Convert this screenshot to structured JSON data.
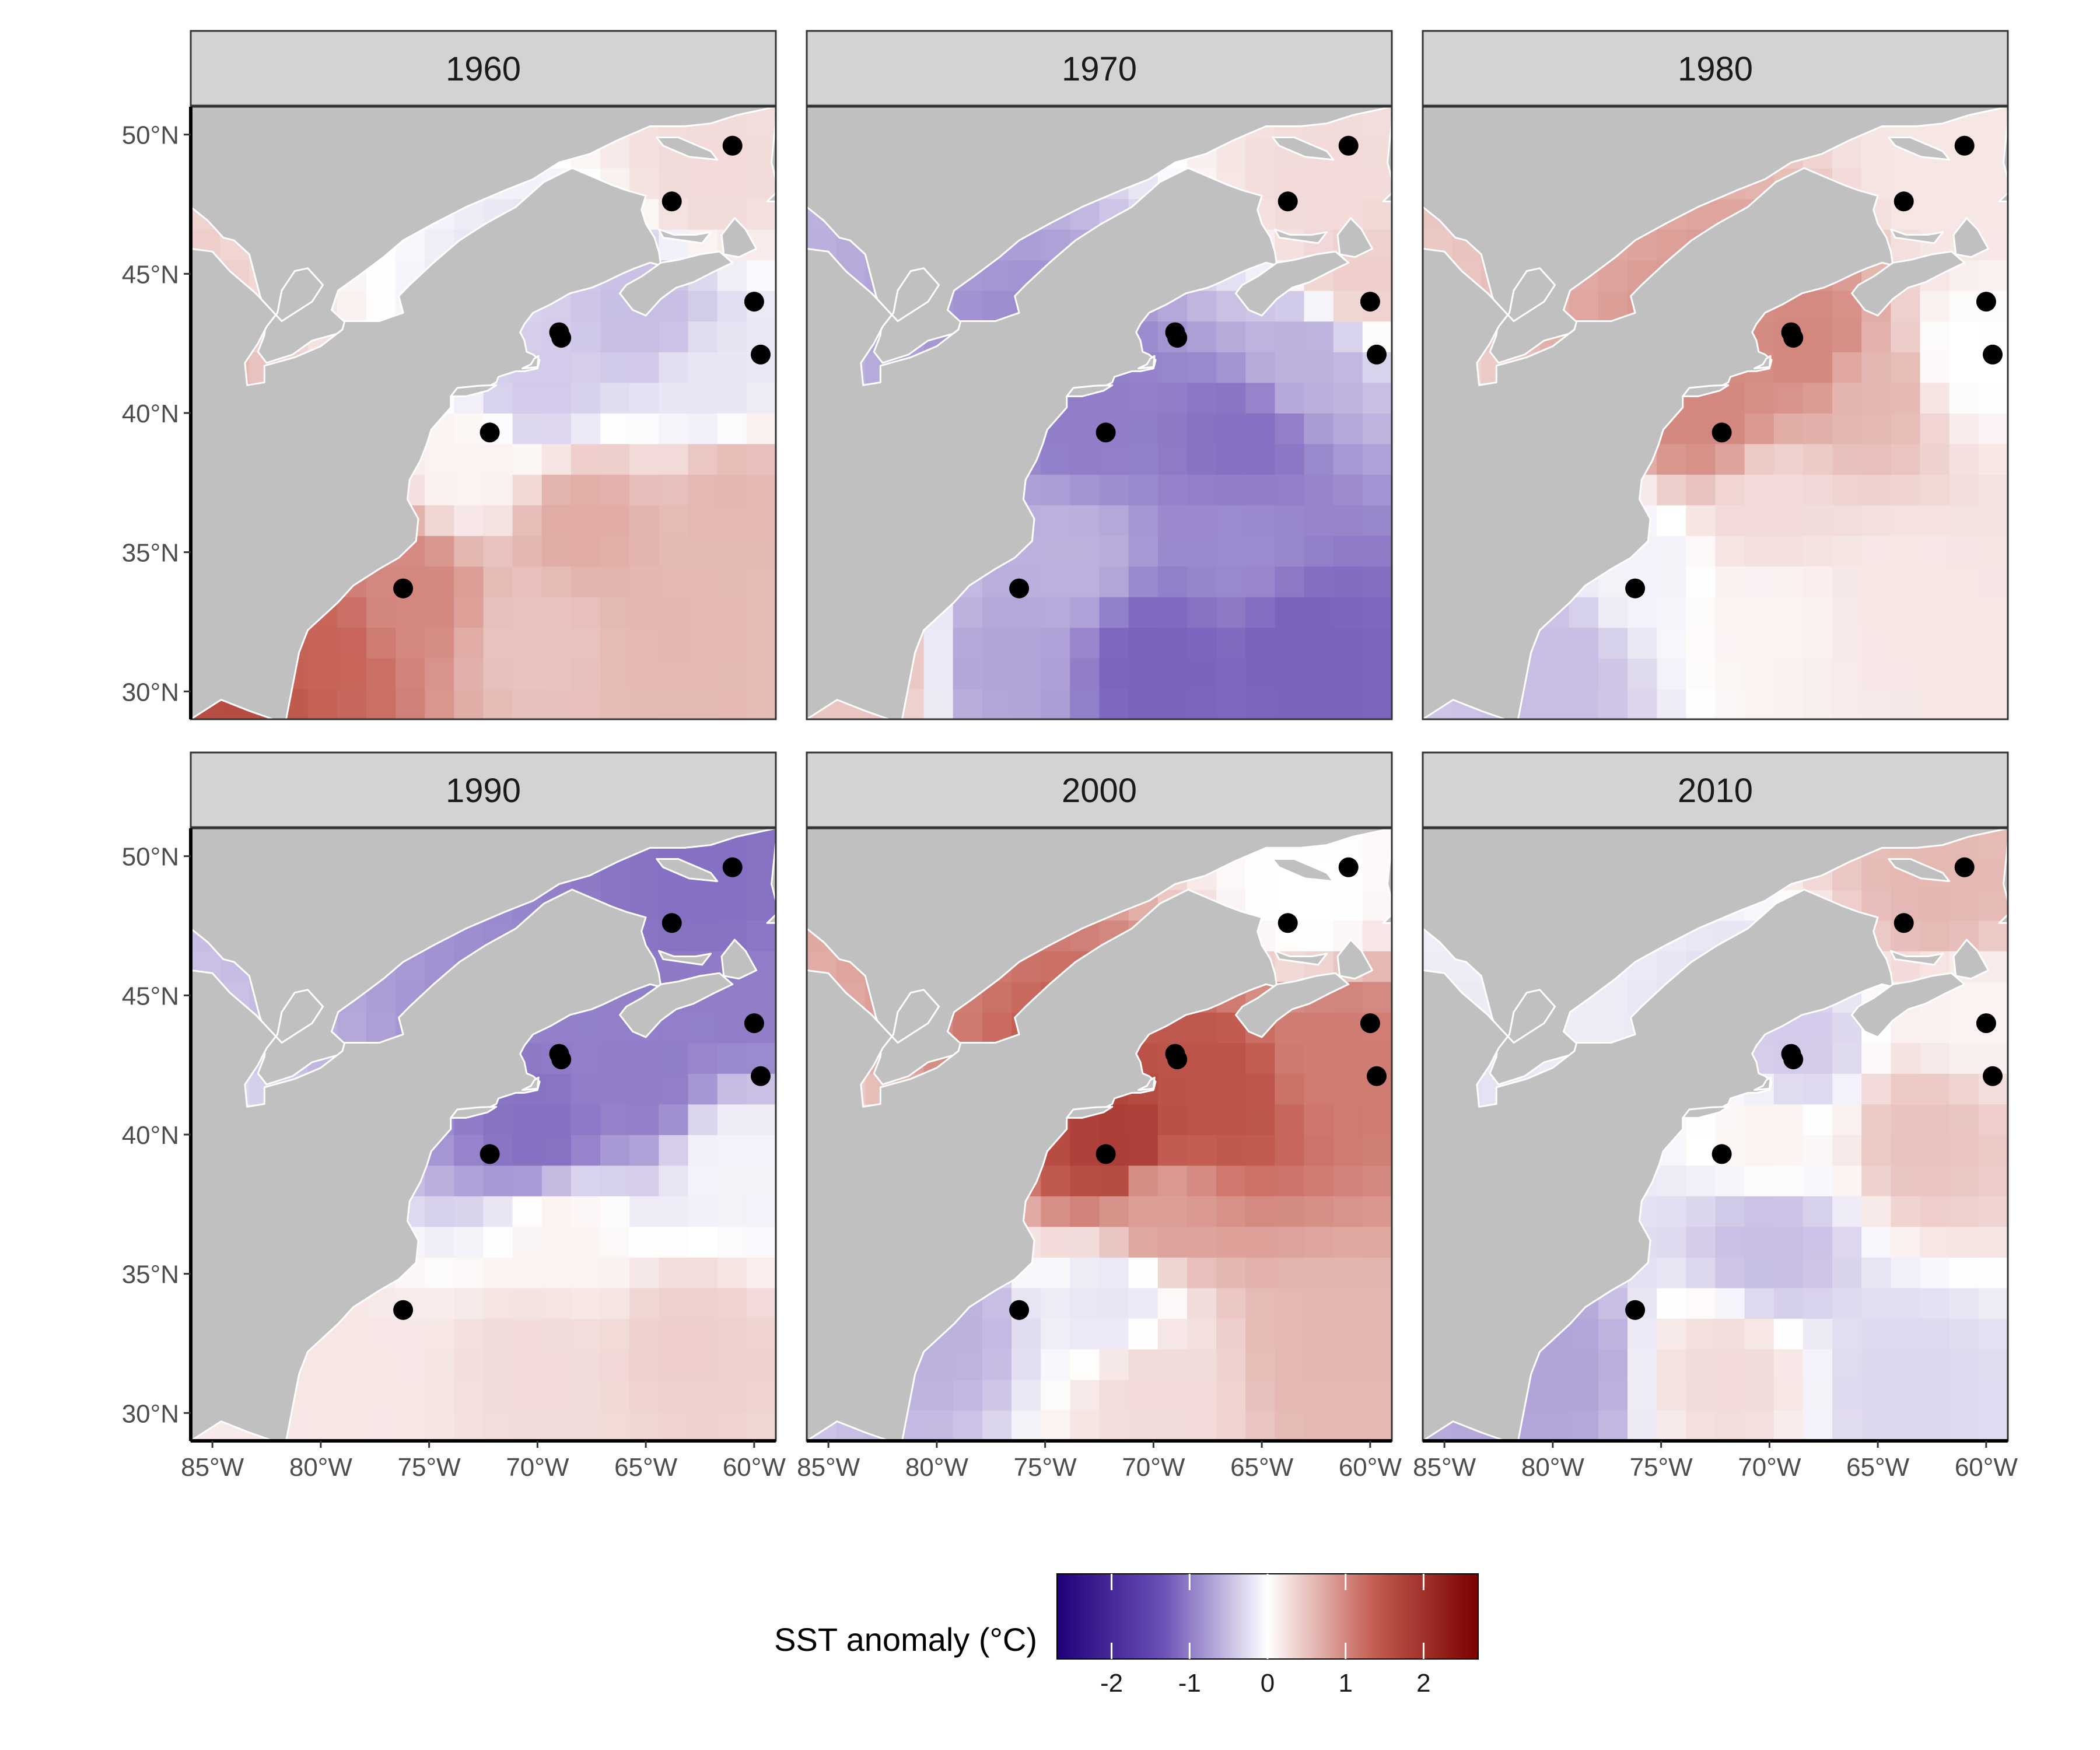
{
  "chart_data": {
    "type": "heatmap",
    "facet_years": [
      "1960",
      "1970",
      "1980",
      "1990",
      "2000",
      "2010"
    ],
    "x_range": [
      -86,
      -59
    ],
    "y_range": [
      29,
      51
    ],
    "x_ticks": [
      -85,
      -80,
      -75,
      -70,
      -65,
      -60
    ],
    "x_tick_labels": [
      "85°W",
      "80°W",
      "75°W",
      "70°W",
      "65°W",
      "60°W"
    ],
    "y_ticks": [
      30,
      35,
      40,
      45,
      50
    ],
    "y_tick_labels": [
      "30°N",
      "35°N",
      "40°N",
      "45°N",
      "50°N"
    ],
    "colorbar": {
      "title": "SST anomaly (°C)",
      "range": [
        -2.7,
        2.7
      ],
      "ticks": [
        -2,
        -1,
        0,
        1,
        2
      ],
      "tick_labels": [
        "-2",
        "-1",
        "0",
        "1",
        "2"
      ],
      "low_color": "#20007a",
      "mid_color": "#ffffff",
      "high_color": "#7a0000"
    },
    "sites": [
      {
        "lon": -76.2,
        "lat": 33.7
      },
      {
        "lon": -72.2,
        "lat": 39.3
      },
      {
        "lon": -69.0,
        "lat": 42.9
      },
      {
        "lon": -68.9,
        "lat": 42.7
      },
      {
        "lon": -63.8,
        "lat": 47.6
      },
      {
        "lon": -61.0,
        "lat": 49.6
      },
      {
        "lon": -60.0,
        "lat": 44.0
      },
      {
        "lon": -59.7,
        "lat": 42.1
      }
    ],
    "anomaly_fields": {
      "1960": [
        {
          "lon": -84.0,
          "lat": 30.5,
          "value": 1.6
        },
        {
          "lon": -80.0,
          "lat": 31.5,
          "value": 1.3
        },
        {
          "lon": -76.0,
          "lat": 33.5,
          "value": 1.0
        },
        {
          "lon": -70.0,
          "lat": 32.0,
          "value": 0.5
        },
        {
          "lon": -64.0,
          "lat": 32.5,
          "value": 0.6
        },
        {
          "lon": -68.0,
          "lat": 36.0,
          "value": 0.7
        },
        {
          "lon": -61.0,
          "lat": 37.0,
          "value": 0.6
        },
        {
          "lon": -73.0,
          "lat": 38.0,
          "value": 0.1
        },
        {
          "lon": -70.0,
          "lat": 41.0,
          "value": -0.4
        },
        {
          "lon": -65.0,
          "lat": 43.5,
          "value": -0.5
        },
        {
          "lon": -62.0,
          "lat": 41.0,
          "value": -0.2
        },
        {
          "lon": -62.0,
          "lat": 48.5,
          "value": 0.3
        }
      ],
      "1970": [
        {
          "lon": -83.0,
          "lat": 31.0,
          "value": 0.5
        },
        {
          "lon": -77.0,
          "lat": 31.0,
          "value": -0.7
        },
        {
          "lon": -70.0,
          "lat": 31.0,
          "value": -1.2
        },
        {
          "lon": -63.0,
          "lat": 31.5,
          "value": -1.2
        },
        {
          "lon": -74.0,
          "lat": 35.0,
          "value": -0.6
        },
        {
          "lon": -66.0,
          "lat": 35.5,
          "value": -0.9
        },
        {
          "lon": -73.0,
          "lat": 39.5,
          "value": -1.0
        },
        {
          "lon": -66.0,
          "lat": 39.0,
          "value": -1.1
        },
        {
          "lon": -63.0,
          "lat": 42.0,
          "value": -0.6
        },
        {
          "lon": -60.5,
          "lat": 45.0,
          "value": 0.4
        },
        {
          "lon": -62.0,
          "lat": 48.0,
          "value": 0.3
        }
      ],
      "1980": [
        {
          "lon": -80.0,
          "lat": 31.0,
          "value": -0.5
        },
        {
          "lon": -76.0,
          "lat": 34.5,
          "value": -0.1
        },
        {
          "lon": -70.0,
          "lat": 33.0,
          "value": 0.1
        },
        {
          "lon": -64.0,
          "lat": 33.5,
          "value": 0.2
        },
        {
          "lon": -70.0,
          "lat": 36.5,
          "value": 0.3
        },
        {
          "lon": -73.0,
          "lat": 40.0,
          "value": 1.0
        },
        {
          "lon": -68.0,
          "lat": 42.5,
          "value": 1.0
        },
        {
          "lon": -65.0,
          "lat": 41.0,
          "value": 0.6
        },
        {
          "lon": -61.0,
          "lat": 42.0,
          "value": 0.0
        },
        {
          "lon": -62.0,
          "lat": 48.5,
          "value": 0.2
        }
      ],
      "1990": [
        {
          "lon": -79.0,
          "lat": 31.5,
          "value": 0.2
        },
        {
          "lon": -70.0,
          "lat": 32.0,
          "value": 0.3
        },
        {
          "lon": -63.0,
          "lat": 32.5,
          "value": 0.4
        },
        {
          "lon": -69.0,
          "lat": 36.5,
          "value": 0.1
        },
        {
          "lon": -70.0,
          "lat": 40.0,
          "value": -1.1
        },
        {
          "lon": -65.0,
          "lat": 42.0,
          "value": -1.0
        },
        {
          "lon": -61.0,
          "lat": 39.0,
          "value": -0.1
        },
        {
          "lon": -60.5,
          "lat": 45.0,
          "value": -1.0
        },
        {
          "lon": -62.0,
          "lat": 48.5,
          "value": -1.1
        }
      ],
      "2000": [
        {
          "lon": -80.0,
          "lat": 33.0,
          "value": -0.6
        },
        {
          "lon": -72.0,
          "lat": 34.0,
          "value": -0.2
        },
        {
          "lon": -70.0,
          "lat": 31.0,
          "value": 0.3
        },
        {
          "lon": -62.0,
          "lat": 32.0,
          "value": 0.6
        },
        {
          "lon": -70.0,
          "lat": 37.5,
          "value": 0.8
        },
        {
          "lon": -71.5,
          "lat": 39.5,
          "value": 1.8
        },
        {
          "lon": -67.0,
          "lat": 41.5,
          "value": 1.5
        },
        {
          "lon": -62.0,
          "lat": 43.0,
          "value": 1.1
        },
        {
          "lon": -63.0,
          "lat": 48.5,
          "value": 0.0
        }
      ],
      "2010": [
        {
          "lon": -80.0,
          "lat": 31.5,
          "value": -0.7
        },
        {
          "lon": -72.0,
          "lat": 31.5,
          "value": 0.3
        },
        {
          "lon": -64.0,
          "lat": 31.0,
          "value": -0.3
        },
        {
          "lon": -70.0,
          "lat": 36.0,
          "value": -0.5
        },
        {
          "lon": -70.0,
          "lat": 40.0,
          "value": 0.1
        },
        {
          "lon": -63.0,
          "lat": 40.0,
          "value": 0.5
        },
        {
          "lon": -69.0,
          "lat": 43.0,
          "value": -0.4
        },
        {
          "lon": -61.0,
          "lat": 44.5,
          "value": 0.1
        },
        {
          "lon": -62.0,
          "lat": 48.5,
          "value": 0.6
        }
      ]
    }
  },
  "colors": {
    "land": "#c0c0c0",
    "coastline": "#ffffff",
    "strip_fill": "#d3d3d3",
    "frame": "#333333",
    "site_marker": "#000000",
    "tick_text": "#4d4d4d"
  }
}
